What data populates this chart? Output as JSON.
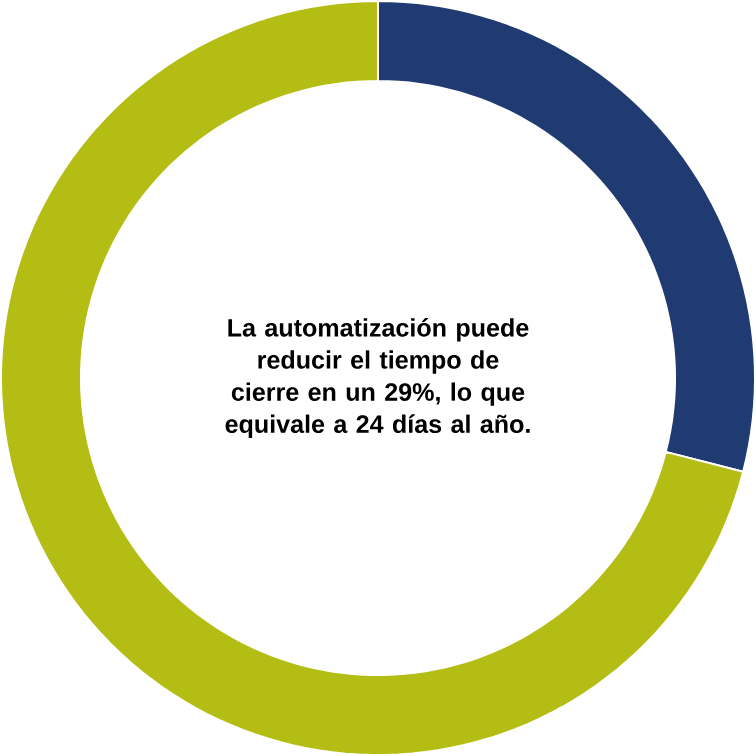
{
  "chart_data": {
    "type": "donut",
    "categories": [
      null,
      null
    ],
    "values": [
      29,
      71
    ],
    "colors": [
      "#203a72",
      "#b4bd14"
    ],
    "annotations": [
      "**La automatización puede reducir el tiempo de cierre en un 29%, lo que equivale a 24 días al año.**"
    ]
  }
}
